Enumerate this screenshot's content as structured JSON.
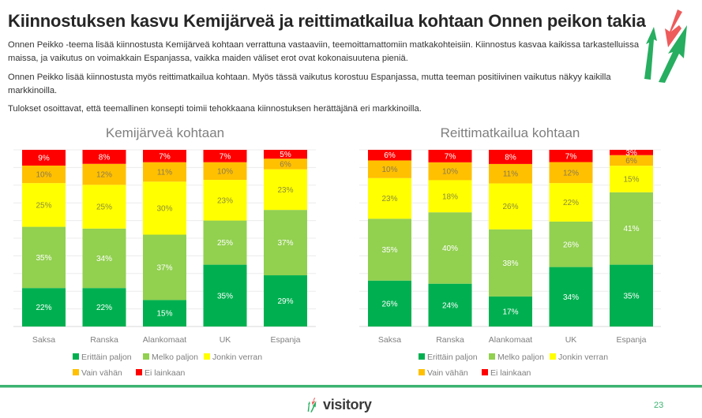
{
  "page": {
    "title": "Kiinnostuksen kasvu Kemijärveä ja reittimatkailua kohtaan Onnen peikon takia",
    "paragraphs": [
      "Onnen Peikko -teema lisää kiinnostusta Kemijärveä kohtaan verrattuna vastaaviin, teemoittamattomiin matkakohteisiin. Kiinnostus kasvaa kaikissa tarkastelluissa maissa, ja vaikutus on voimakkain Espanjassa, vaikka maiden väliset erot ovat kokonaisuutena pieniä.",
      "Onnen Peikko lisää kiinnostusta myös reittimatkailua kohtaan. Myös tässä vaikutus korostuu Espanjassa, mutta teeman positiivinen vaikutus näkyy kaikilla markkinoilla.",
      "Tulokset osoittavat, että teemallinen konsepti toimii tehokkaana kiinnostuksen herättäjänä eri markkinoilla."
    ],
    "footer_brand": "visitory",
    "page_number": "23",
    "brand_colors": {
      "green": "#3cb371",
      "red": "#f0605d"
    }
  },
  "chart_data": [
    {
      "type": "bar",
      "stacked": true,
      "title": "Kemijärveä kohtaan",
      "categories": [
        "Saksa",
        "Ranska",
        "Alankomaat",
        "UK",
        "Espanja"
      ],
      "series": [
        {
          "name": "Erittäin paljon",
          "color": "#00b050",
          "label_color": "#ffffff",
          "values": [
            22,
            22,
            15,
            35,
            29
          ]
        },
        {
          "name": "Melko paljon",
          "color": "#92d050",
          "label_color": "#ffffff",
          "values": [
            35,
            34,
            37,
            25,
            37
          ]
        },
        {
          "name": "Jonkin verran",
          "color": "#ffff00",
          "label_color": "#8c8c3c",
          "values": [
            25,
            25,
            30,
            23,
            23
          ]
        },
        {
          "name": "Vain vähän",
          "color": "#ffc000",
          "label_color": "#8c7a50",
          "values": [
            10,
            12,
            11,
            10,
            6
          ]
        },
        {
          "name": "Ei lainkaan",
          "color": "#ff0000",
          "label_color": "#ffffff",
          "values": [
            9,
            8,
            7,
            7,
            5
          ]
        }
      ],
      "value_suffix": "%",
      "ylim": [
        0,
        100
      ],
      "grid": true,
      "legend": "bottom"
    },
    {
      "type": "bar",
      "stacked": true,
      "title": "Reittimatkailua kohtaan",
      "categories": [
        "Saksa",
        "Ranska",
        "Alankomaat",
        "UK",
        "Espanja"
      ],
      "series": [
        {
          "name": "Erittäin paljon",
          "color": "#00b050",
          "label_color": "#ffffff",
          "values": [
            26,
            24,
            17,
            34,
            35
          ]
        },
        {
          "name": "Melko paljon",
          "color": "#92d050",
          "label_color": "#ffffff",
          "values": [
            35,
            40,
            38,
            26,
            41
          ]
        },
        {
          "name": "Jonkin verran",
          "color": "#ffff00",
          "label_color": "#8c8c3c",
          "values": [
            23,
            18,
            26,
            22,
            15
          ]
        },
        {
          "name": "Vain vähän",
          "color": "#ffc000",
          "label_color": "#8c7a50",
          "values": [
            10,
            10,
            11,
            12,
            6
          ]
        },
        {
          "name": "Ei lainkaan",
          "color": "#ff0000",
          "label_color": "#ffffff",
          "values": [
            6,
            7,
            8,
            7,
            3
          ]
        }
      ],
      "value_suffix": "%",
      "ylim": [
        0,
        100
      ],
      "grid": true,
      "legend": "bottom"
    }
  ]
}
